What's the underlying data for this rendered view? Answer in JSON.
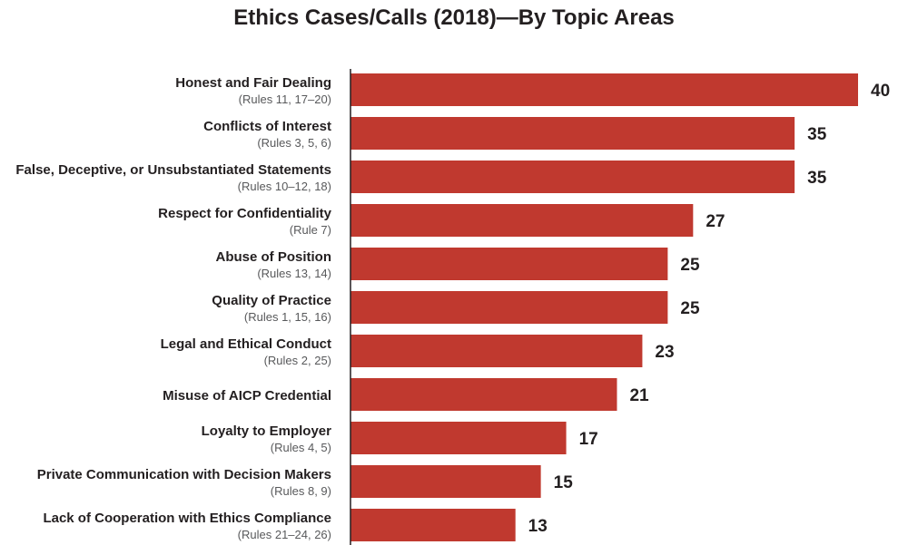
{
  "chart_data": {
    "type": "bar",
    "orientation": "horizontal",
    "title": "Ethics Cases/Calls (2018)—By Topic Areas",
    "xlabel": "",
    "ylabel": "",
    "xlim": [
      0,
      40
    ],
    "grid": false,
    "legend": "none",
    "bar_color": "#c0392f",
    "categories": [
      "Honest and Fair Dealing",
      "Conflicts of Interest",
      "False, Deceptive, or Unsubstantiated Statements",
      "Respect for Confidentiality",
      "Abuse of Position",
      "Quality of Practice",
      "Legal and Ethical Conduct",
      "Misuse of AICP Credential",
      "Loyalty to Employer",
      "Private Communication with Decision Makers",
      "Lack of Cooperation with Ethics Compliance"
    ],
    "category_notes": [
      "(Rules 11, 17–20)",
      "(Rules 3, 5, 6)",
      "(Rules 10–12, 18)",
      "(Rule 7)",
      "(Rules 13, 14)",
      "(Rules 1, 15, 16)",
      "(Rules 2, 25)",
      "",
      "(Rules 4, 5)",
      "(Rules 8, 9)",
      "(Rules 21–24, 26)"
    ],
    "values": [
      40,
      35,
      35,
      27,
      25,
      25,
      23,
      21,
      17,
      15,
      13
    ]
  }
}
